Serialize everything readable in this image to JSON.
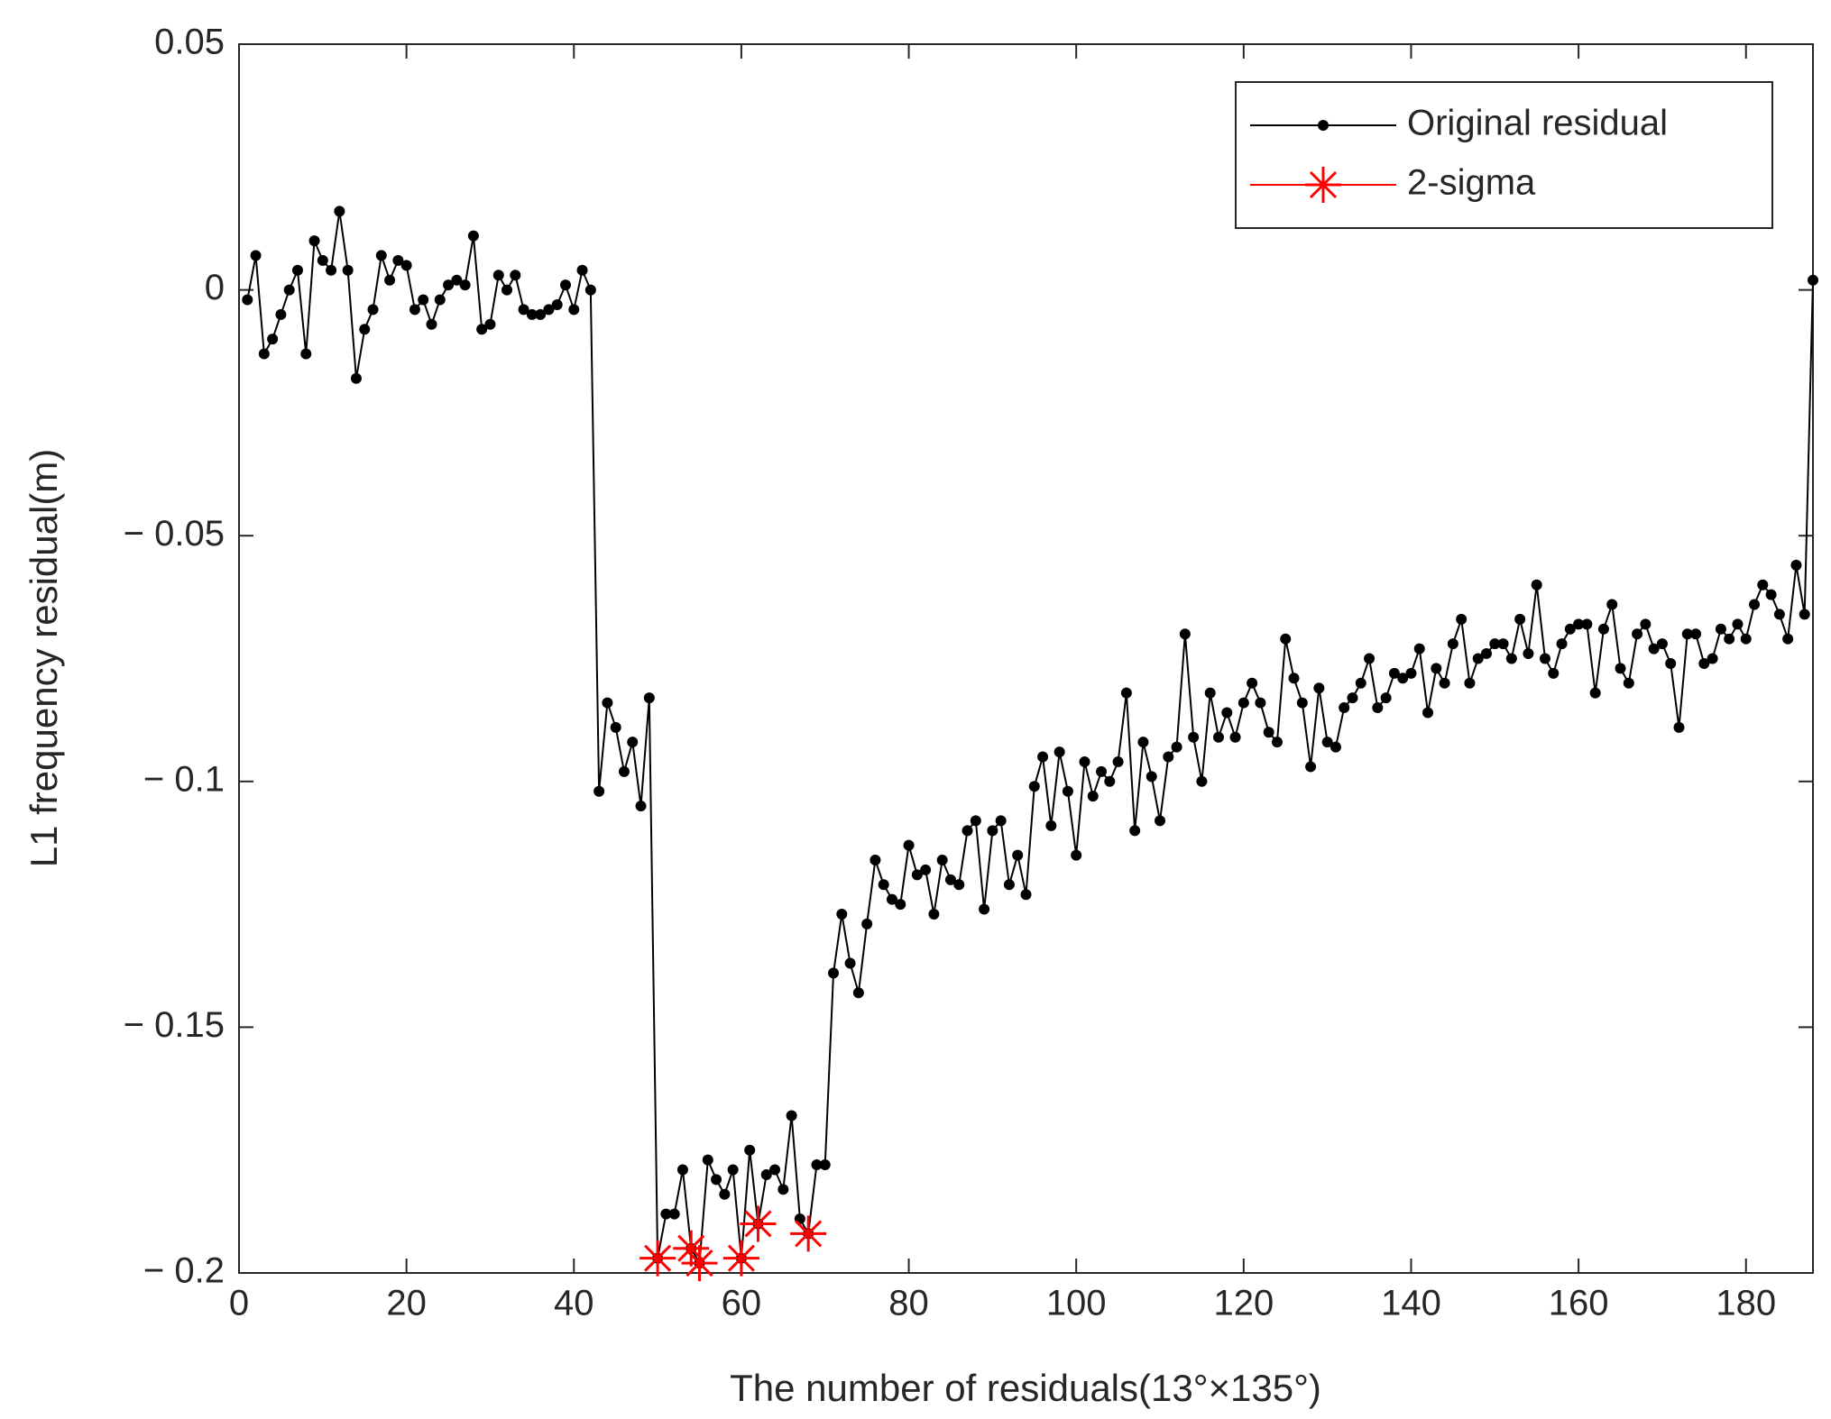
{
  "chart_data": {
    "type": "line",
    "xlabel": "The number of residuals(13°×135°)",
    "ylabel": "L1 frequency residual(m)",
    "xlim": [
      0,
      188
    ],
    "ylim": [
      -0.2,
      0.05
    ],
    "xticks": [
      0,
      20,
      40,
      60,
      80,
      100,
      120,
      140,
      160,
      180
    ],
    "yticks": [
      {
        "value": -0.2,
        "label": "− 0.2"
      },
      {
        "value": -0.15,
        "label": "− 0.15"
      },
      {
        "value": -0.1,
        "label": "− 0.1"
      },
      {
        "value": -0.05,
        "label": "− 0.05"
      },
      0,
      0.05
    ],
    "grid": false,
    "legend": "upper right",
    "series": [
      {
        "name": "Original residual",
        "color": "#000000",
        "marker": ".",
        "line": true,
        "x": [
          1,
          2,
          3,
          4,
          5,
          6,
          7,
          8,
          9,
          10,
          11,
          12,
          13,
          14,
          15,
          16,
          17,
          18,
          19,
          20,
          21,
          22,
          23,
          24,
          25,
          26,
          27,
          28,
          29,
          30,
          31,
          32,
          33,
          34,
          35,
          36,
          37,
          38,
          39,
          40,
          41,
          42,
          43,
          44,
          45,
          46,
          47,
          48,
          49,
          50,
          51,
          52,
          53,
          54,
          55,
          56,
          57,
          58,
          59,
          60,
          61,
          62,
          63,
          64,
          65,
          66,
          67,
          68,
          69,
          70,
          71,
          72,
          73,
          74,
          75,
          76,
          77,
          78,
          79,
          80,
          81,
          82,
          83,
          84,
          85,
          86,
          87,
          88,
          89,
          90,
          91,
          92,
          93,
          94,
          95,
          96,
          97,
          98,
          99,
          100,
          101,
          102,
          103,
          104,
          105,
          106,
          107,
          108,
          109,
          110,
          111,
          112,
          113,
          114,
          115,
          116,
          117,
          118,
          119,
          120,
          121,
          122,
          123,
          124,
          125,
          126,
          127,
          128,
          129,
          130,
          131,
          132,
          133,
          134,
          135,
          136,
          137,
          138,
          139,
          140,
          141,
          142,
          143,
          144,
          145,
          146,
          147,
          148,
          149,
          150,
          151,
          152,
          153,
          154,
          155,
          156,
          157,
          158,
          159,
          160,
          161,
          162,
          163,
          164,
          165,
          166,
          167,
          168,
          169,
          170,
          171,
          172,
          173,
          174,
          175,
          176,
          177,
          178,
          179,
          180,
          181,
          182,
          183,
          184,
          185,
          186,
          187,
          188
        ],
        "values": [
          -0.002,
          0.007,
          -0.013,
          -0.01,
          -0.005,
          0.0,
          0.004,
          -0.013,
          0.01,
          0.006,
          0.004,
          0.016,
          0.004,
          -0.018,
          -0.008,
          -0.004,
          0.007,
          0.002,
          0.006,
          0.005,
          -0.004,
          -0.002,
          -0.007,
          -0.002,
          0.001,
          0.002,
          0.001,
          0.011,
          -0.008,
          -0.007,
          0.003,
          0.0,
          0.003,
          -0.004,
          -0.005,
          -0.005,
          -0.004,
          -0.003,
          0.001,
          -0.004,
          0.004,
          0.0,
          -0.102,
          -0.084,
          -0.089,
          -0.098,
          -0.092,
          -0.105,
          -0.083,
          -0.197,
          -0.188,
          -0.188,
          -0.179,
          -0.195,
          -0.198,
          -0.177,
          -0.181,
          -0.184,
          -0.179,
          -0.197,
          -0.175,
          -0.19,
          -0.18,
          -0.179,
          -0.183,
          -0.168,
          -0.189,
          -0.192,
          -0.178,
          -0.178,
          -0.139,
          -0.127,
          -0.137,
          -0.143,
          -0.129,
          -0.116,
          -0.121,
          -0.124,
          -0.125,
          -0.113,
          -0.119,
          -0.118,
          -0.127,
          -0.116,
          -0.12,
          -0.121,
          -0.11,
          -0.108,
          -0.126,
          -0.11,
          -0.108,
          -0.121,
          -0.115,
          -0.123,
          -0.101,
          -0.095,
          -0.109,
          -0.094,
          -0.102,
          -0.115,
          -0.096,
          -0.103,
          -0.098,
          -0.1,
          -0.096,
          -0.082,
          -0.11,
          -0.092,
          -0.099,
          -0.108,
          -0.095,
          -0.093,
          -0.07,
          -0.091,
          -0.1,
          -0.082,
          -0.091,
          -0.086,
          -0.091,
          -0.084,
          -0.08,
          -0.084,
          -0.09,
          -0.092,
          -0.071,
          -0.079,
          -0.084,
          -0.097,
          -0.081,
          -0.092,
          -0.093,
          -0.085,
          -0.083,
          -0.08,
          -0.075,
          -0.085,
          -0.083,
          -0.078,
          -0.079,
          -0.078,
          -0.073,
          -0.086,
          -0.077,
          -0.08,
          -0.072,
          -0.067,
          -0.08,
          -0.075,
          -0.074,
          -0.072,
          -0.072,
          -0.075,
          -0.067,
          -0.074,
          -0.06,
          -0.075,
          -0.078,
          -0.072,
          -0.069,
          -0.068,
          -0.068,
          -0.082,
          -0.069,
          -0.064,
          -0.077,
          -0.08,
          -0.07,
          -0.068,
          -0.073,
          -0.072,
          -0.076,
          -0.089,
          -0.07,
          -0.07,
          -0.076,
          -0.075,
          -0.069,
          -0.071,
          -0.068,
          -0.071,
          -0.064,
          -0.06,
          -0.062,
          -0.066,
          -0.071,
          -0.056,
          -0.066,
          0.002
        ]
      },
      {
        "name": "2-sigma",
        "color": "#ff0000",
        "marker": "*",
        "line": false,
        "x": [
          50,
          54,
          55,
          60,
          62,
          68
        ],
        "values": [
          -0.197,
          -0.195,
          -0.198,
          -0.197,
          -0.19,
          -0.192
        ]
      }
    ]
  }
}
